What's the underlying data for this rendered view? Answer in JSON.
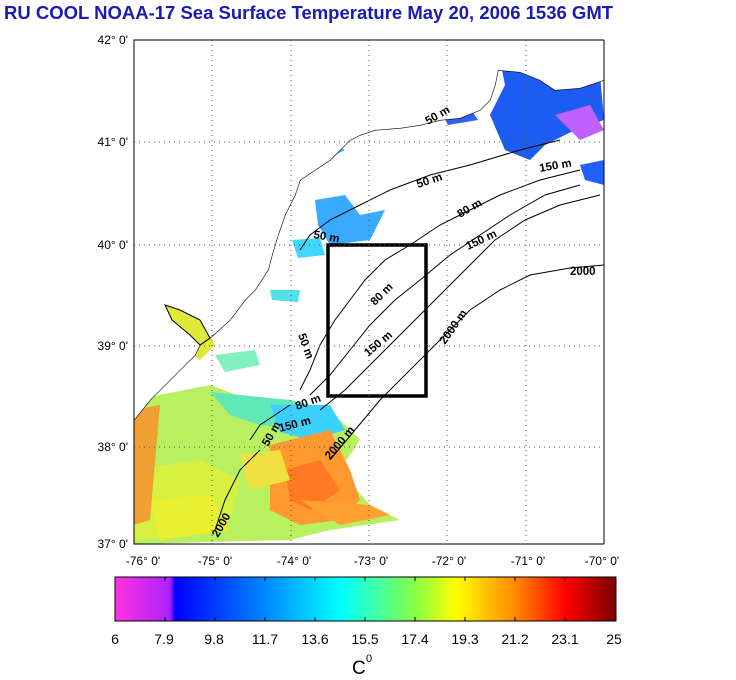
{
  "title": "RU COOL  NOAA-17 Sea Surface Temperature May 20, 2006 1536 GMT",
  "colors": {
    "title": "#1a1ab4",
    "water_no_data": "#ffffff",
    "land": "#ffffff",
    "study_box": "#000000"
  },
  "map": {
    "lat_labels": [
      "42° 0'",
      "41° 0'",
      "40° 0'",
      "39° 0'",
      "38° 0'",
      "37° 0'"
    ],
    "lon_labels": [
      "-76° 0'",
      "-75° 0'",
      "-74° 0'",
      "-73° 0'",
      "-72° 0'",
      "-71° 0'",
      "-70° 0'"
    ],
    "contour_labels": [
      {
        "text": "50 m"
      },
      {
        "text": "50 m"
      },
      {
        "text": "50 m"
      },
      {
        "text": "50 m"
      },
      {
        "text": "50 m"
      },
      {
        "text": "80 m"
      },
      {
        "text": "80 m"
      },
      {
        "text": "80 m"
      },
      {
        "text": "150 m"
      },
      {
        "text": "150 m"
      },
      {
        "text": "150 m"
      },
      {
        "text": "150 m"
      },
      {
        "text": "2000 m"
      },
      {
        "text": "2000 m"
      },
      {
        "text": "2000"
      },
      {
        "text": "2000"
      }
    ]
  },
  "colorbar": {
    "tick_labels": [
      "6",
      "7.9",
      "9.8",
      "11.7",
      "13.6",
      "15.5",
      "17.4",
      "19.3",
      "21.2",
      "23.1",
      "25"
    ],
    "unit_label": "C",
    "unit_superscript": "0",
    "stops": [
      "#ff33dd",
      "#8800ff",
      "#0000ff",
      "#0088ff",
      "#00ffff",
      "#88ff44",
      "#ffff00",
      "#ff9900",
      "#ff0000",
      "#880000"
    ]
  }
}
